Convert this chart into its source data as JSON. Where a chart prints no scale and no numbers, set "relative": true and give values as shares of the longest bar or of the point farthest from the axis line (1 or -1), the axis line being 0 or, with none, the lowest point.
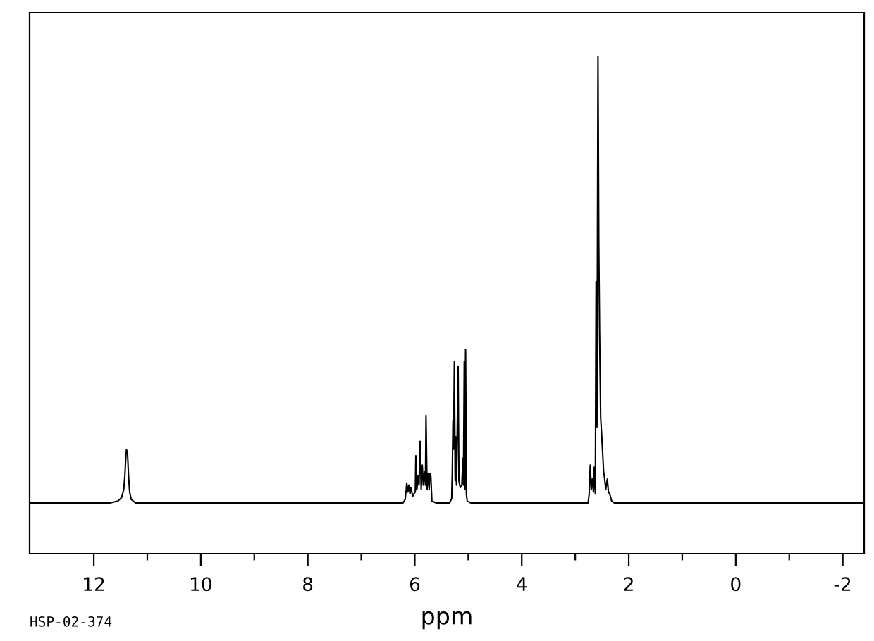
{
  "chart_data": {
    "type": "line",
    "relative": true,
    "xlabel": "ppm",
    "annotations": [
      "HSP-02-374"
    ],
    "xlim": [
      13.2,
      -2.4
    ],
    "xticks": [
      12,
      {
        "value": 11,
        "label": null
      },
      10,
      {
        "value": 9,
        "label": null
      },
      8,
      {
        "value": 7,
        "label": null
      },
      6,
      {
        "value": 5,
        "label": null
      },
      4,
      {
        "value": 3,
        "label": null
      },
      2,
      {
        "value": 1,
        "label": null
      },
      0,
      {
        "value": -1,
        "label": null
      },
      -2
    ],
    "series": [
      {
        "color": "#000000",
        "x": [
          13.2,
          12.5,
          11.7,
          11.55,
          11.48,
          11.44,
          11.42,
          11.4,
          11.39,
          11.37,
          11.35,
          11.33,
          11.3,
          11.22,
          10,
          8,
          6.4,
          6.22,
          6.18,
          6.16,
          6.15,
          6.13,
          6.11,
          6.09,
          6.07,
          6.04,
          6.02,
          5.99,
          5.98,
          5.96,
          5.94,
          5.92,
          5.9,
          5.88,
          5.86,
          5.84,
          5.82,
          5.8,
          5.79,
          5.77,
          5.75,
          5.73,
          5.72,
          5.7,
          5.68,
          5.6,
          5.35,
          5.31,
          5.3,
          5.285,
          5.275,
          5.26,
          5.245,
          5.235,
          5.22,
          5.19,
          5.175,
          5.15,
          5.12,
          5.1,
          5.09,
          5.075,
          5.065,
          5.05,
          5.035,
          5.02,
          4.95,
          4,
          2.9,
          2.76,
          2.74,
          2.72,
          2.7,
          2.68,
          2.66,
          2.645,
          2.625,
          2.61,
          2.595,
          2.575,
          2.56,
          2.545,
          2.525,
          2.505,
          2.49,
          2.47,
          2.45,
          2.43,
          2.4,
          2.38,
          2.355,
          2.32,
          2.27,
          1,
          -1,
          -2.4
        ],
        "values": [
          0.102,
          0.102,
          0.102,
          0.106,
          0.113,
          0.129,
          0.156,
          0.196,
          0.209,
          0.203,
          0.156,
          0.124,
          0.109,
          0.102,
          0.102,
          0.102,
          0.102,
          0.102,
          0.109,
          0.129,
          0.142,
          0.124,
          0.138,
          0.12,
          0.133,
          0.115,
          0.12,
          0.124,
          0.197,
          0.129,
          0.156,
          0.138,
          0.226,
          0.129,
          0.178,
          0.138,
          0.165,
          0.138,
          0.278,
          0.129,
          0.161,
          0.129,
          0.161,
          0.156,
          0.106,
          0.102,
          0.102,
          0.111,
          0.156,
          0.268,
          0.21,
          0.386,
          0.147,
          0.235,
          0.138,
          0.377,
          0.147,
          0.133,
          0.138,
          0.192,
          0.138,
          0.386,
          0.129,
          0.41,
          0.12,
          0.106,
          0.102,
          0.102,
          0.102,
          0.102,
          0.12,
          0.178,
          0.129,
          0.15,
          0.124,
          0.174,
          0.12,
          0.547,
          0.255,
          1.0,
          0.623,
          0.443,
          0.273,
          0.237,
          0.207,
          0.165,
          0.15,
          0.129,
          0.15,
          0.124,
          0.12,
          0.106,
          0.102,
          0.102,
          0.102,
          0.102
        ]
      }
    ]
  }
}
